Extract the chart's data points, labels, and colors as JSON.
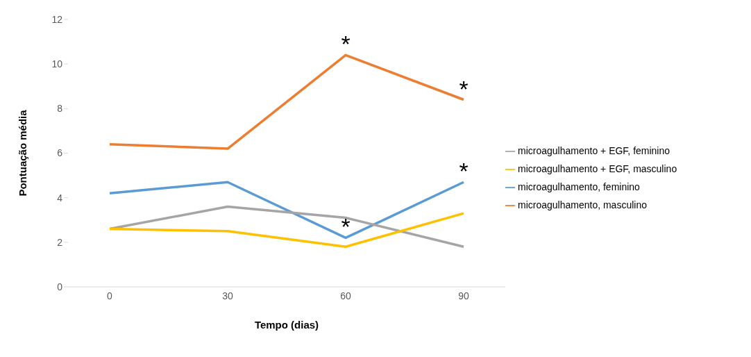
{
  "chart_data": {
    "type": "line",
    "xlabel": "Tempo (dias)",
    "ylabel": "Pontuação média",
    "categories": [
      "0",
      "30",
      "60",
      "90"
    ],
    "series": [
      {
        "name": "microagulhamento, feminino",
        "color": "#5b9bd5",
        "values": [
          4.2,
          4.7,
          2.2,
          4.7
        ]
      },
      {
        "name": "microagulhamento, masculino",
        "color": "#ed7d31",
        "values": [
          6.4,
          6.2,
          10.4,
          8.4
        ]
      },
      {
        "name": "microagulhamento + EGF, feminino",
        "color": "#a5a5a5",
        "values": [
          2.6,
          3.6,
          3.1,
          1.8
        ]
      },
      {
        "name": "microagulhamento + EGF, masculino",
        "color": "#ffc000",
        "values": [
          2.6,
          2.5,
          1.8,
          3.3
        ]
      }
    ],
    "ylim": [
      0,
      12
    ],
    "yticks": [
      0,
      2,
      4,
      6,
      8,
      10,
      12
    ],
    "grid": false,
    "legend": "right",
    "marker": "none",
    "line_style": "solid",
    "annotations": [
      {
        "text": "*",
        "x": "60",
        "y": 10.4
      },
      {
        "text": "*",
        "x": "90",
        "y": 8.4
      },
      {
        "text": "*",
        "x": "90",
        "y": 4.7
      },
      {
        "text": "*",
        "x": "60",
        "y": 2.2
      }
    ]
  }
}
